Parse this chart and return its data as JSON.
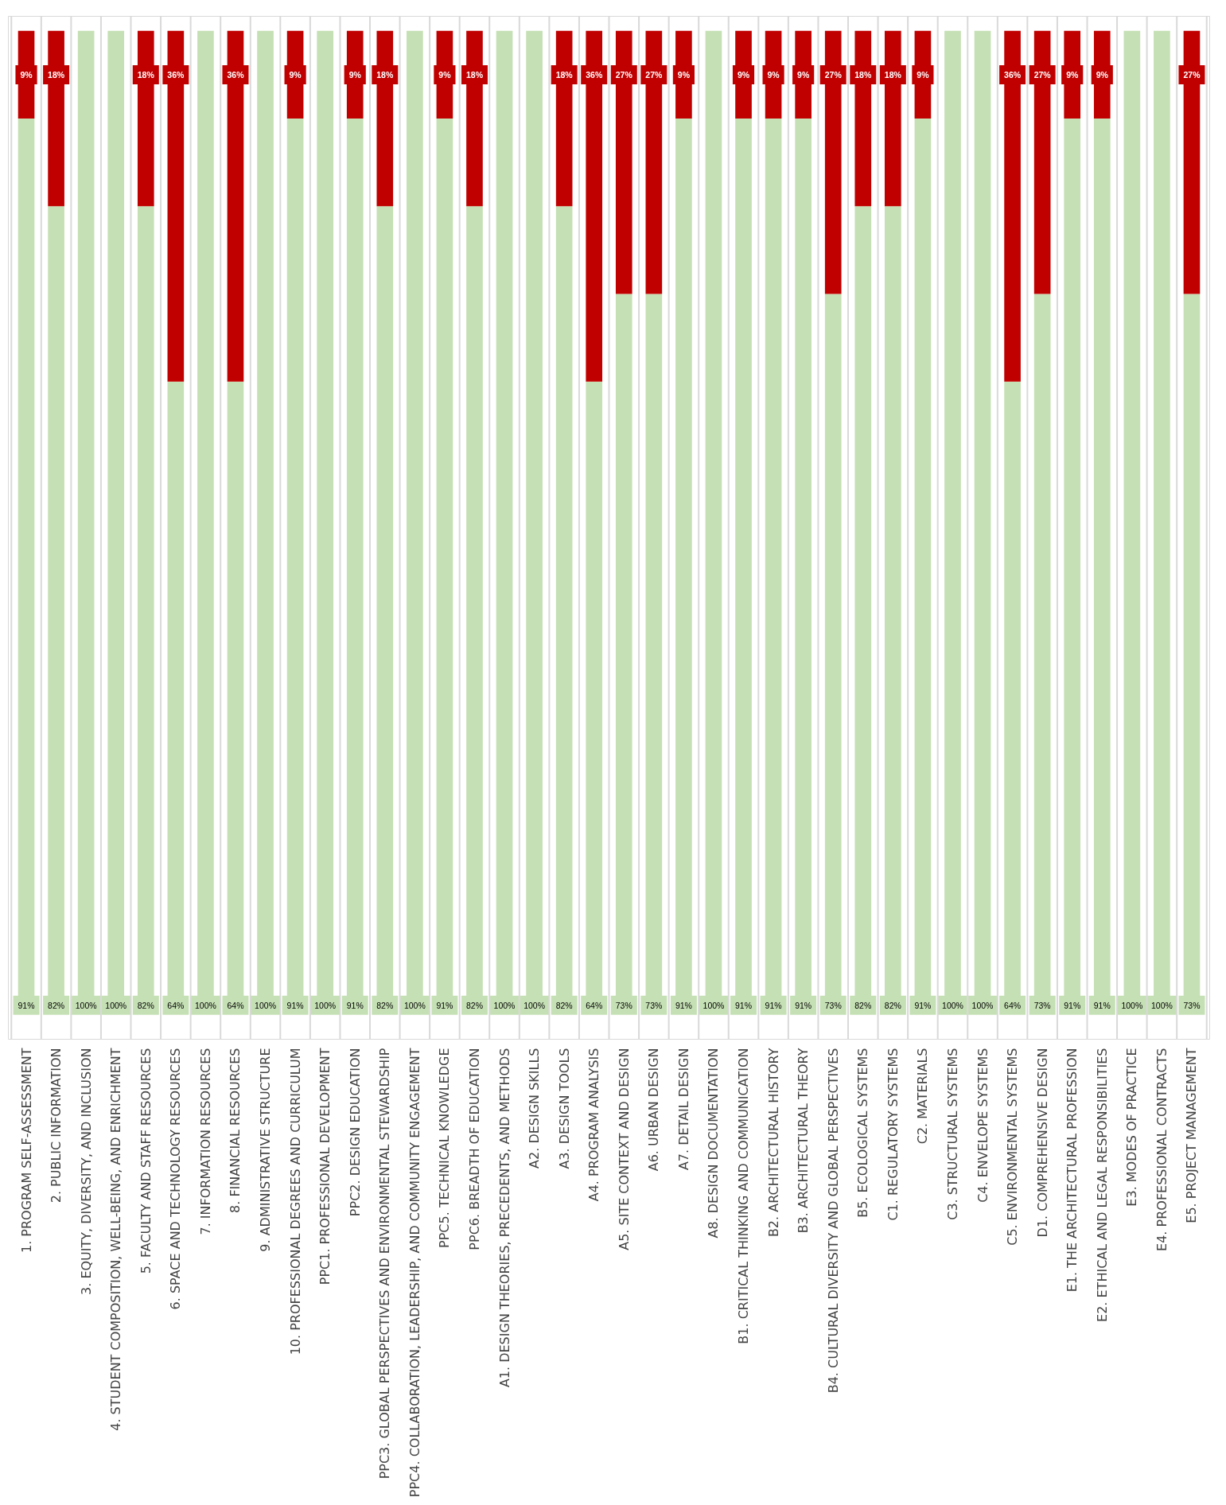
{
  "chart_data": {
    "type": "bar",
    "stacked": true,
    "grid": "x",
    "categories": [
      "1. PROGRAM SELF-ASSESSMENT",
      "2. PUBLIC INFORMATION",
      "3. EQUITY, DIVERSITY, AND INCLUSION",
      "4. STUDENT COMPOSITION, WELL-BEING, AND ENRICHMENT",
      "5. FACULTY AND STAFF RESOURCES",
      "6. SPACE AND TECHNOLOGY RESOURCES",
      "7. INFORMATION RESOURCES",
      "8. FINANCIAL RESOURCES",
      "9. ADMINISTRATIVE STRUCTURE",
      "10. PROFESSIONAL DEGREES AND CURRICULUM",
      "PPC1. PROFESSIONAL DEVELOPMENT",
      "PPC2. DESIGN EDUCATION",
      "PPC3. GLOBAL PERSPECTIVES AND ENVIRONMENTAL STEWARDSHIP",
      "PPC4. COLLABORATION, LEADERSHIP, AND COMMUNITY ENGAGEMENT",
      "PPC5. TECHNICAL KNOWLEDGE",
      "PPC6. BREADTH OF EDUCATION",
      "A1. DESIGN THEORIES, PRECEDENTS, AND METHODS",
      "A2. DESIGN SKILLS",
      "A3. DESIGN TOOLS",
      "A4. PROGRAM ANALYSIS",
      "A5. SITE CONTEXT AND DESIGN",
      "A6. URBAN DESIGN",
      "A7. DETAIL DESIGN",
      "A8. DESIGN DOCUMENTATION",
      "B1. CRITICAL THINKING AND COMMUNICATION",
      "B2. ARCHITECTURAL HISTORY",
      "B3. ARCHITECTURAL THEORY",
      "B4. CULTURAL DIVERSITY AND GLOBAL PERSPECTIVES",
      "B5. ECOLOGICAL SYSTEMS",
      "C1. REGULATORY SYSTEMS",
      "C2. MATERIALS",
      "C3. STRUCTURAL SYSTEMS",
      "C4. ENVELOPE SYSTEMS",
      "C5. ENVIRONMENTAL SYSTEMS",
      "D1. COMPREHENSIVE DESIGN",
      "E1. THE ARCHITECTURAL PROFESSION",
      "E2. ETHICAL AND LEGAL RESPONSIBILITIES",
      "E3. MODES OF PRACTICE",
      "E4. PROFESSIONAL CONTRACTS",
      "E5. PROJECT MANAGEMENT"
    ],
    "series": [
      {
        "color": "#c5e0b4",
        "values": [
          91,
          82,
          100,
          100,
          82,
          64,
          100,
          64,
          100,
          91,
          100,
          91,
          82,
          100,
          91,
          82,
          100,
          100,
          82,
          64,
          73,
          73,
          91,
          100,
          91,
          91,
          91,
          73,
          82,
          82,
          91,
          100,
          100,
          64,
          73,
          91,
          91,
          100,
          100,
          73
        ],
        "value_labels": [
          "91%",
          "82%",
          "100%",
          "100%",
          "82%",
          "64%",
          "100%",
          "64%",
          "100%",
          "91%",
          "100%",
          "91%",
          "82%",
          "100%",
          "91%",
          "82%",
          "100%",
          "100%",
          "82%",
          "64%",
          "73%",
          "73%",
          "91%",
          "100%",
          "91%",
          "91%",
          "91%",
          "73%",
          "82%",
          "82%",
          "91%",
          "100%",
          "100%",
          "64%",
          "73%",
          "91%",
          "91%",
          "100%",
          "100%",
          "73%"
        ]
      },
      {
        "color": "#c00000",
        "values": [
          9,
          18,
          0,
          0,
          18,
          36,
          0,
          36,
          0,
          9,
          0,
          9,
          18,
          0,
          9,
          18,
          0,
          0,
          18,
          36,
          27,
          27,
          9,
          0,
          9,
          9,
          9,
          27,
          18,
          18,
          9,
          0,
          0,
          36,
          27,
          9,
          9,
          0,
          0,
          27
        ],
        "value_labels": [
          "9%",
          "18%",
          null,
          null,
          "18%",
          "36%",
          null,
          "36%",
          null,
          "9%",
          null,
          "9%",
          "18%",
          null,
          "9%",
          "18%",
          null,
          null,
          "18%",
          "36%",
          "27%",
          "27%",
          "9%",
          null,
          "9%",
          "9%",
          "9%",
          "27%",
          "18%",
          "18%",
          "9%",
          null,
          null,
          "36%",
          "27%",
          "9%",
          "9%",
          null,
          null,
          "27%"
        ]
      }
    ]
  }
}
